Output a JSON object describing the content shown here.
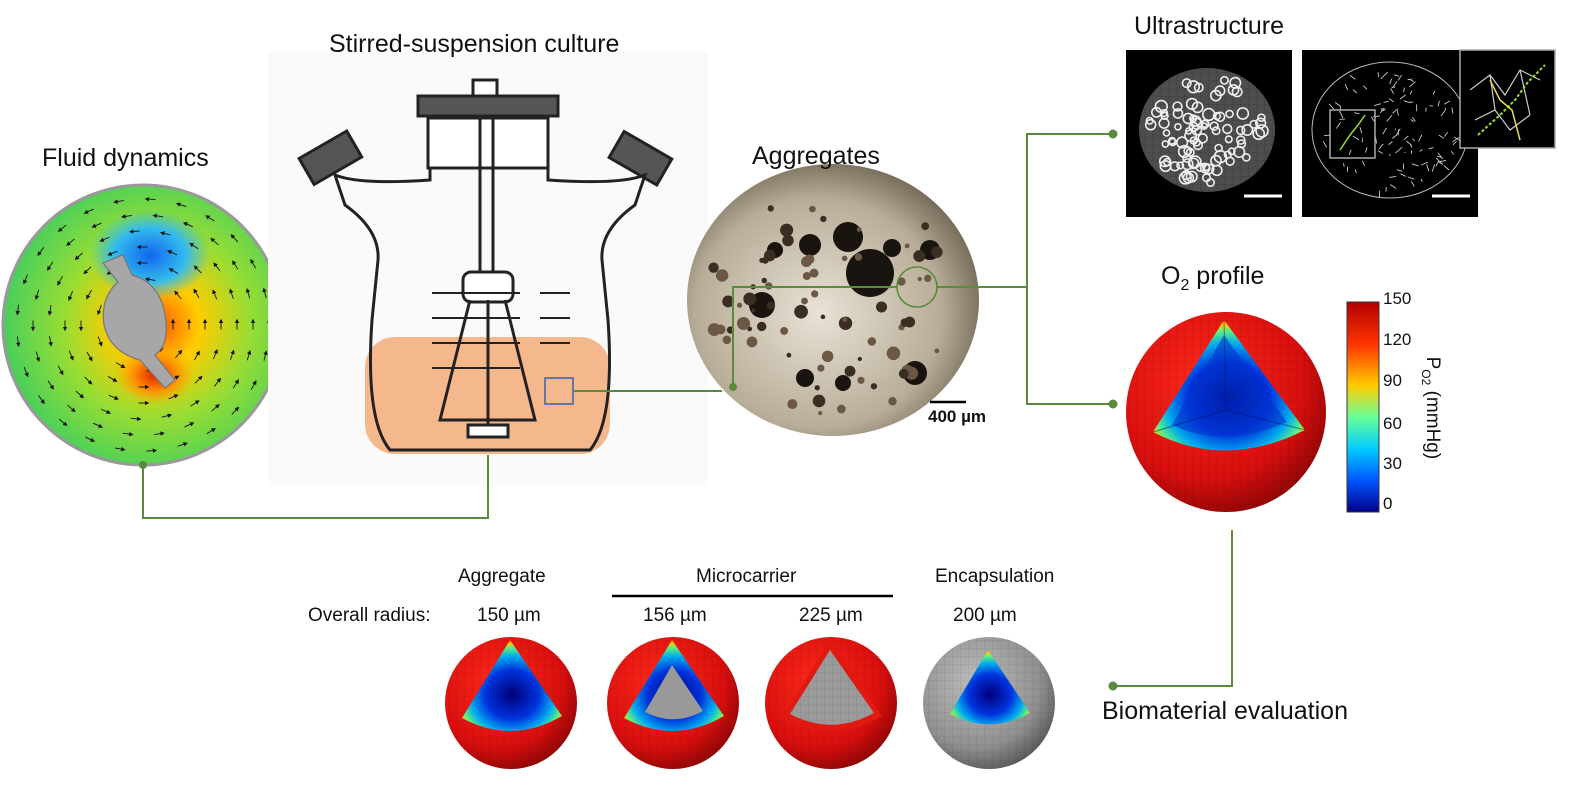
{
  "titles": {
    "stirred": "Stirred-suspension culture",
    "fluid": "Fluid dynamics",
    "aggregates": "Aggregates",
    "ultrastructure": "Ultrastructure",
    "o2_prefix": "O",
    "o2_sub": "2",
    "o2_suffix": " profile",
    "biomaterial": "Biomaterial evaluation"
  },
  "scale_bar_label": "400 µm",
  "colorbar": {
    "label_main": "P",
    "label_sub": "O2",
    "label_unit": " (mmHg)",
    "ticks": [
      "150",
      "120",
      "90",
      "60",
      "30",
      "0"
    ],
    "colors": [
      "#b30000",
      "#ff3300",
      "#ffcc00",
      "#66ff99",
      "#00ccff",
      "#0055ff",
      "#000088"
    ]
  },
  "evaluation": {
    "row_label": "Overall radius:",
    "groups": [
      "Aggregate",
      "Microcarrier",
      "Encapsulation"
    ],
    "radii": [
      "150 µm",
      "156 µm",
      "225 µm",
      "200 µm"
    ]
  },
  "colors": {
    "connector": "#5a8a3c",
    "medium": "#f4b88c",
    "sphere_outer": "#e01010",
    "sphere_gray": "#9a9a9a"
  }
}
